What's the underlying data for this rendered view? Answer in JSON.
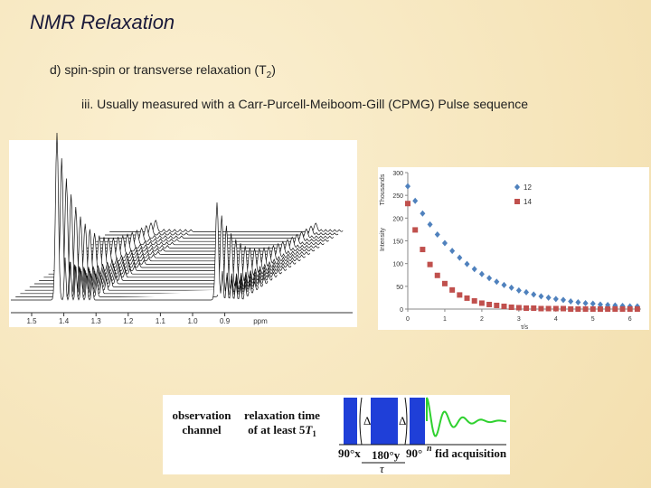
{
  "slide": {
    "title": "NMR Relaxation",
    "point_d": {
      "text": "d) spin-spin or transverse relaxation (T",
      "subscript": "2",
      "close": ")"
    },
    "point_iii": "iii.  Usually measured with a Carr-Purcell-Meiboom-Gill (CPMG) Pulse sequence"
  },
  "spectrum": {
    "ticks": [
      "1.5",
      "1.4",
      "1.3",
      "1.2",
      "1.1",
      "1.0",
      "0.9"
    ],
    "unit": "ppm"
  },
  "chart_data": {
    "type": "scatter",
    "y_label": "Intensity",
    "y_unit": "Thousands",
    "x_label": "τ/s",
    "x": [
      0,
      0.2,
      0.4,
      0.6,
      0.8,
      1.0,
      1.2,
      1.4,
      1.6,
      1.8,
      2.0,
      2.2,
      2.4,
      2.6,
      2.8,
      3.0,
      3.2,
      3.4,
      3.6,
      3.8,
      4.0,
      4.2,
      4.4,
      4.6,
      4.8,
      5.0,
      5.2,
      5.4,
      5.6,
      5.8,
      6.0,
      6.2
    ],
    "series": [
      {
        "name": "12",
        "color": "#4f81bd",
        "marker": "diamond",
        "values": [
          270,
          238,
          210,
          186,
          164,
          145,
          128,
          113,
          99,
          88,
          77,
          68,
          60,
          53,
          47,
          41,
          37,
          32,
          28,
          25,
          22,
          20,
          17,
          15,
          13,
          12,
          10,
          9,
          8,
          7,
          6,
          6
        ]
      },
      {
        "name": "14",
        "color": "#c0504d",
        "marker": "square",
        "values": [
          232,
          174,
          131,
          98,
          74,
          56,
          42,
          31,
          24,
          18,
          13,
          10,
          8,
          6,
          4,
          3,
          2,
          2,
          1,
          1,
          1,
          1,
          0,
          0,
          0,
          0,
          0,
          0,
          0,
          0,
          0,
          0
        ]
      }
    ],
    "xlim": [
      0,
      6.3
    ],
    "xticks": [
      0,
      1,
      2,
      3,
      4,
      5,
      6
    ],
    "ylim": [
      0,
      300
    ],
    "yticks": [
      0,
      50,
      100,
      150,
      200,
      250,
      300
    ],
    "legend": "upper right"
  },
  "pulse": {
    "channel": [
      "observation",
      "channel"
    ],
    "relax": [
      "relaxation time",
      "of at least 5"
    ],
    "t1": "T",
    "t1_sub": "1",
    "delta": "Δ",
    "p90x": "90°x",
    "p180y": "180°y",
    "p90": "90°",
    "n": "n",
    "fid": "fid acquisition",
    "tau": "τ"
  }
}
